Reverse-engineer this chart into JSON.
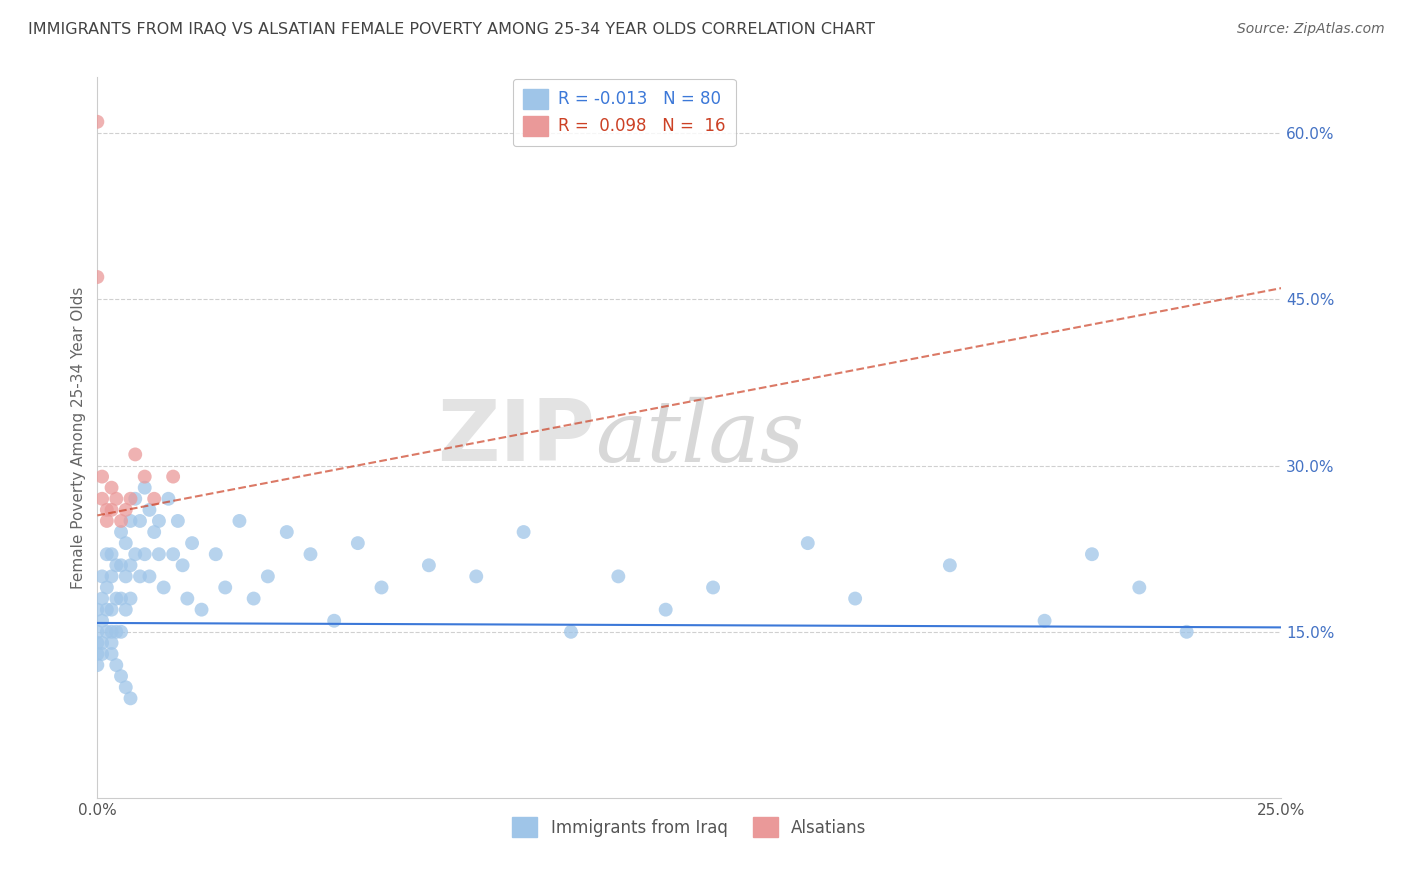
{
  "title": "IMMIGRANTS FROM IRAQ VS ALSATIAN FEMALE POVERTY AMONG 25-34 YEAR OLDS CORRELATION CHART",
  "source": "Source: ZipAtlas.com",
  "ylabel": "Female Poverty Among 25-34 Year Olds",
  "xlim": [
    0.0,
    0.25
  ],
  "ylim": [
    0.0,
    0.65
  ],
  "x_ticks": [
    0.0,
    0.25
  ],
  "x_tick_labels": [
    "0.0%",
    "25.0%"
  ],
  "y_ticks_right": [
    0.15,
    0.3,
    0.45,
    0.6
  ],
  "y_tick_labels_right": [
    "15.0%",
    "30.0%",
    "45.0%",
    "60.0%"
  ],
  "watermark_part1": "ZIP",
  "watermark_part2": "atlas",
  "legend_iraq": {
    "R": "-0.013",
    "N": "80"
  },
  "legend_alsatian": {
    "R": "0.098",
    "N": "16"
  },
  "iraq_color": "#9fc5e8",
  "alsatian_color": "#ea9999",
  "iraq_line_color": "#3c78d8",
  "alsatian_line_color": "#cc4125",
  "iraq_scatter_x": [
    0.0,
    0.0,
    0.0,
    0.0,
    0.0,
    0.001,
    0.001,
    0.001,
    0.001,
    0.001,
    0.002,
    0.002,
    0.002,
    0.002,
    0.003,
    0.003,
    0.003,
    0.003,
    0.003,
    0.004,
    0.004,
    0.004,
    0.005,
    0.005,
    0.005,
    0.005,
    0.006,
    0.006,
    0.006,
    0.007,
    0.007,
    0.007,
    0.008,
    0.008,
    0.009,
    0.009,
    0.01,
    0.01,
    0.011,
    0.011,
    0.012,
    0.013,
    0.013,
    0.014,
    0.015,
    0.016,
    0.017,
    0.018,
    0.019,
    0.02,
    0.022,
    0.025,
    0.027,
    0.03,
    0.033,
    0.036,
    0.04,
    0.045,
    0.05,
    0.055,
    0.06,
    0.07,
    0.08,
    0.09,
    0.1,
    0.11,
    0.12,
    0.13,
    0.15,
    0.16,
    0.18,
    0.2,
    0.21,
    0.22,
    0.23,
    0.003,
    0.004,
    0.005,
    0.006,
    0.007
  ],
  "iraq_scatter_y": [
    0.17,
    0.15,
    0.14,
    0.13,
    0.12,
    0.2,
    0.18,
    0.16,
    0.14,
    0.13,
    0.22,
    0.19,
    0.17,
    0.15,
    0.22,
    0.2,
    0.17,
    0.15,
    0.13,
    0.21,
    0.18,
    0.15,
    0.24,
    0.21,
    0.18,
    0.15,
    0.23,
    0.2,
    0.17,
    0.25,
    0.21,
    0.18,
    0.27,
    0.22,
    0.25,
    0.2,
    0.28,
    0.22,
    0.26,
    0.2,
    0.24,
    0.25,
    0.22,
    0.19,
    0.27,
    0.22,
    0.25,
    0.21,
    0.18,
    0.23,
    0.17,
    0.22,
    0.19,
    0.25,
    0.18,
    0.2,
    0.24,
    0.22,
    0.16,
    0.23,
    0.19,
    0.21,
    0.2,
    0.24,
    0.15,
    0.2,
    0.17,
    0.19,
    0.23,
    0.18,
    0.21,
    0.16,
    0.22,
    0.19,
    0.15,
    0.14,
    0.12,
    0.11,
    0.1,
    0.09
  ],
  "alsatian_scatter_x": [
    0.0,
    0.0,
    0.001,
    0.001,
    0.002,
    0.002,
    0.003,
    0.003,
    0.004,
    0.005,
    0.006,
    0.007,
    0.008,
    0.01,
    0.012,
    0.016
  ],
  "alsatian_scatter_y": [
    0.61,
    0.47,
    0.29,
    0.27,
    0.26,
    0.25,
    0.28,
    0.26,
    0.27,
    0.25,
    0.26,
    0.27,
    0.31,
    0.29,
    0.27,
    0.29
  ],
  "iraq_line_x": [
    0.0,
    0.25
  ],
  "iraq_line_y": [
    0.158,
    0.154
  ],
  "alsatian_line_x": [
    0.0,
    0.25
  ],
  "alsatian_line_y": [
    0.255,
    0.46
  ],
  "background_color": "#ffffff",
  "grid_color": "#d0d0d0",
  "title_color": "#434343",
  "title_fontsize": 11.5,
  "axis_label_color": "#666666",
  "right_tick_color": "#4472c4"
}
